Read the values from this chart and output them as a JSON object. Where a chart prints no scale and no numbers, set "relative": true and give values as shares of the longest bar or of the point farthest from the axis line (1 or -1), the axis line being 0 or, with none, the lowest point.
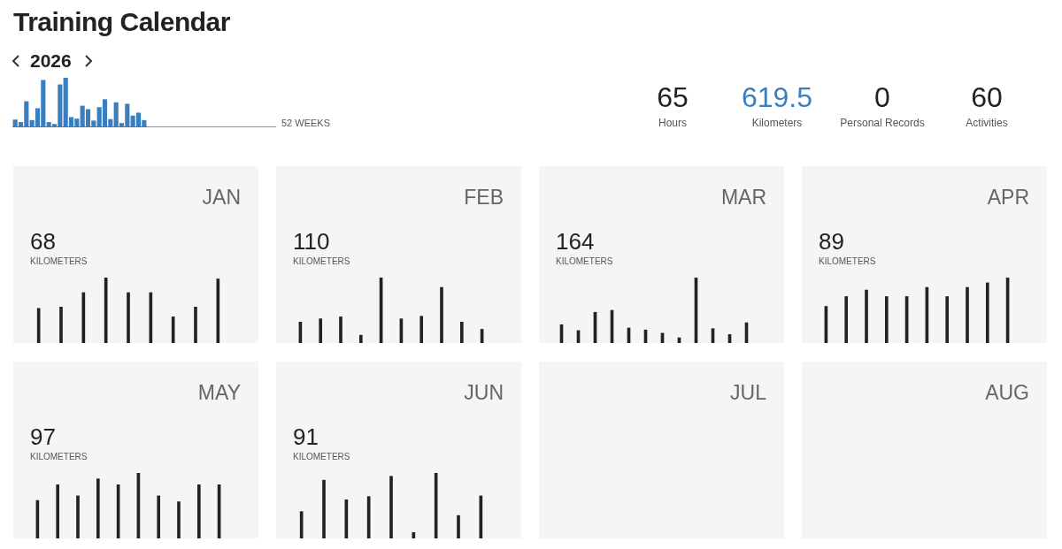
{
  "chart_data": [
    {
      "type": "bar",
      "title": "Training Calendar",
      "subtitle": "2026",
      "annotations": [
        "52 WEEKS"
      ],
      "relative": true,
      "color": "#3a7ebf",
      "categories": [
        null,
        null,
        null,
        null,
        null,
        null,
        null,
        null,
        null,
        null,
        null,
        null,
        null,
        null,
        null,
        null,
        null,
        null,
        null,
        null,
        null,
        null,
        null,
        null
      ],
      "values": [
        0.15,
        0.1,
        0.52,
        0.14,
        0.38,
        0.95,
        0.1,
        0.06,
        0.86,
        1,
        0.2,
        0.17,
        0.43,
        0.36,
        0.13,
        0.4,
        0.56,
        0.16,
        0.5,
        0.08,
        0.47,
        0.23,
        0.29,
        0.14
      ]
    },
    {
      "type": "other",
      "categories": [
        "Hours",
        "Kilometers",
        "Personal Records",
        "Activities"
      ],
      "values": [
        65,
        619.5,
        0,
        60
      ],
      "colors": [
        "#222222",
        "#3a7ebf",
        "#222222",
        "#222222"
      ],
      "data_labels": true
    },
    {
      "type": "bar",
      "title": "JAN",
      "annotations": [
        "68",
        "KILOMETERS"
      ],
      "relative": true,
      "color": "#222222",
      "categories": [
        null,
        null,
        null,
        null,
        null,
        null,
        null,
        null,
        null
      ],
      "values": [
        0.53,
        0.55,
        0.77,
        1,
        0.77,
        0.77,
        0.4,
        0.55,
        0.98
      ]
    },
    {
      "type": "bar",
      "title": "FEB",
      "annotations": [
        "110",
        "KILOMETERS"
      ],
      "relative": true,
      "color": "#222222",
      "categories": [
        null,
        null,
        null,
        null,
        null,
        null,
        null,
        null,
        null,
        null
      ],
      "values": [
        0.32,
        0.37,
        0.4,
        0.12,
        1,
        0.37,
        0.41,
        0.85,
        0.32,
        0.21
      ]
    },
    {
      "type": "bar",
      "title": "MAR",
      "annotations": [
        "164",
        "KILOMETERS"
      ],
      "relative": true,
      "color": "#222222",
      "categories": [
        null,
        null,
        null,
        null,
        null,
        null,
        null,
        null,
        null,
        null,
        null,
        null
      ],
      "values": [
        0.28,
        0.19,
        0.47,
        0.5,
        0.23,
        0.2,
        0.15,
        0.08,
        1,
        0.22,
        0.13,
        0.31
      ]
    },
    {
      "type": "bar",
      "title": "APR",
      "annotations": [
        "89",
        "KILOMETERS"
      ],
      "relative": true,
      "color": "#222222",
      "categories": [
        null,
        null,
        null,
        null,
        null,
        null,
        null,
        null,
        null,
        null
      ],
      "values": [
        0.56,
        0.71,
        0.81,
        0.71,
        0.71,
        0.85,
        0.71,
        0.85,
        0.92,
        1
      ]
    },
    {
      "type": "bar",
      "title": "MAY",
      "annotations": [
        "97",
        "KILOMETERS"
      ],
      "relative": true,
      "color": "#222222",
      "categories": [
        null,
        null,
        null,
        null,
        null,
        null,
        null,
        null,
        null,
        null
      ],
      "values": [
        0.58,
        0.82,
        0.65,
        0.91,
        0.82,
        1,
        0.65,
        0.56,
        0.82,
        0.82
      ]
    },
    {
      "type": "bar",
      "title": "JUN",
      "annotations": [
        "91",
        "KILOMETERS"
      ],
      "relative": true,
      "color": "#222222",
      "categories": [
        null,
        null,
        null,
        null,
        null,
        null,
        null,
        null,
        null
      ],
      "values": [
        0.41,
        0.89,
        0.59,
        0.64,
        0.95,
        0.09,
        1,
        0.35,
        0.65
      ]
    },
    {
      "type": "other",
      "title": "JUL"
    },
    {
      "type": "other",
      "title": "AUG"
    }
  ]
}
